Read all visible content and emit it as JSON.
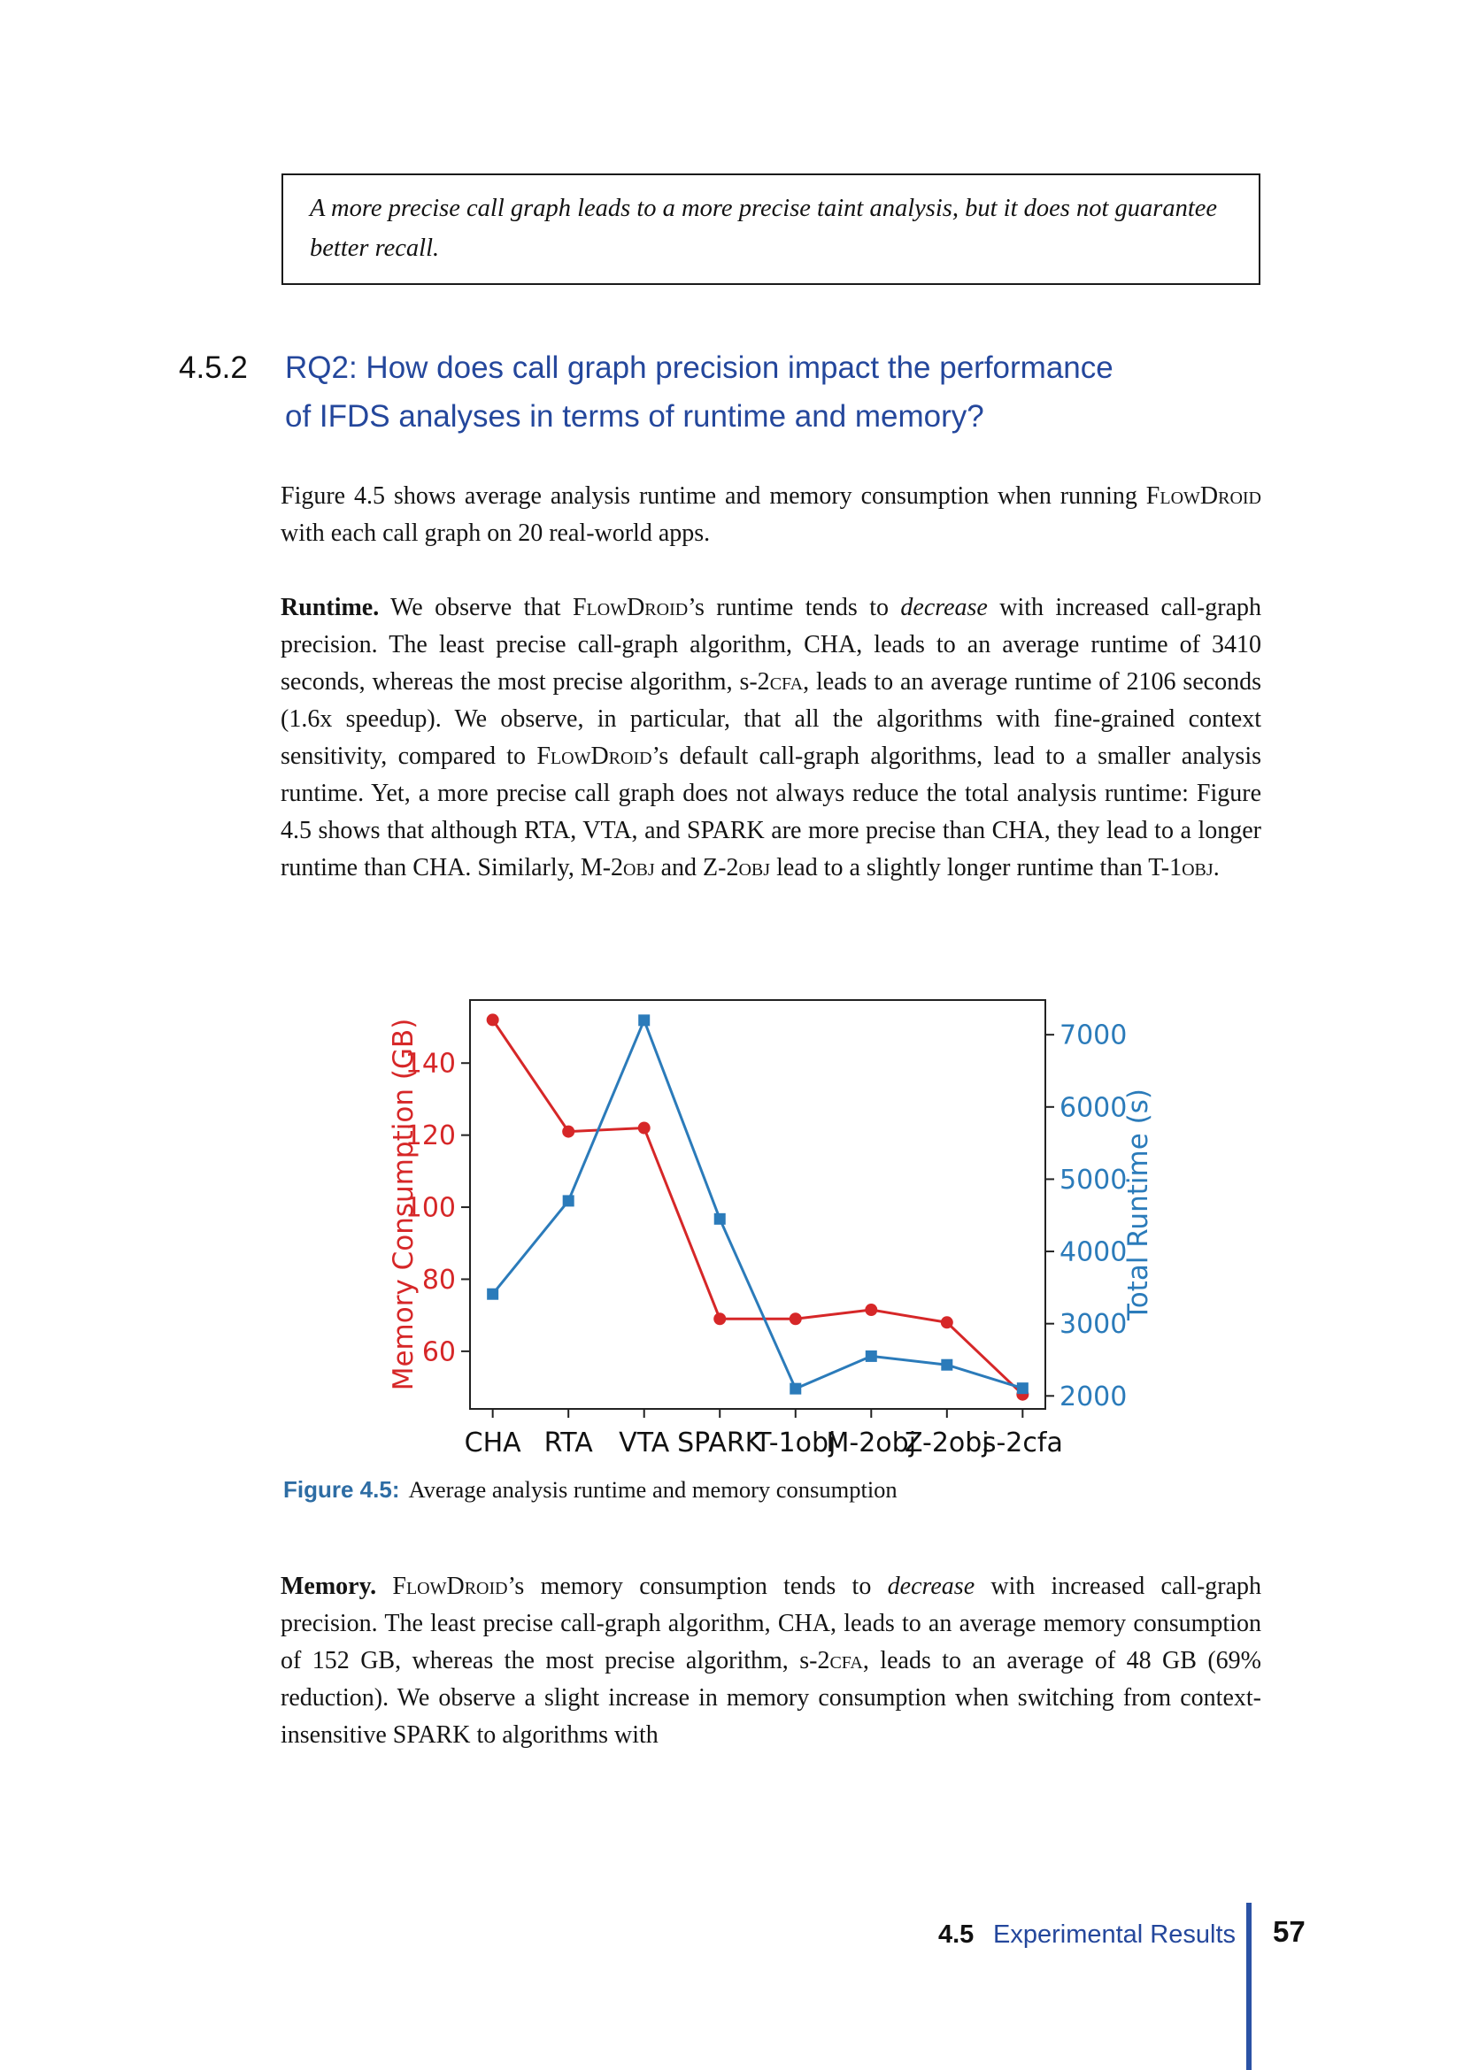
{
  "colors": {
    "heading_blue": "#24479c",
    "caption_blue": "#2e6da4",
    "rule_blue": "#2b52a5",
    "memory_red": "#d62728",
    "runtime_blue": "#2b7bba"
  },
  "quote_box": {
    "text": "A more precise call graph leads to a more precise taint analysis, but it does not guarantee better recall."
  },
  "heading": {
    "number": "4.5.2",
    "lines": [
      "RQ2: How does call graph precision impact the performance",
      "of IFDS analyses in terms of runtime and memory?"
    ]
  },
  "paragraphs": {
    "intro": [
      {
        "t": "Figure 4.5 shows average analysis runtime and memory consumption when running "
      },
      {
        "t": "FlowDroid",
        "s": "sc"
      },
      {
        "t": " with each call graph on 20 real-world apps."
      }
    ],
    "runtime": [
      {
        "t": "Runtime.",
        "s": "b"
      },
      {
        "t": " We observe that "
      },
      {
        "t": "FlowDroid",
        "s": "sc"
      },
      {
        "t": "’s runtime tends to "
      },
      {
        "t": "decrease",
        "s": "i"
      },
      {
        "t": " with increased call-graph precision. The least precise call-graph algorithm, CHA, leads to an average runtime of 3410 seconds, whereas the most precise algorithm, s-2"
      },
      {
        "t": "cfa",
        "s": "sc"
      },
      {
        "t": ", leads to an average runtime of 2106 seconds (1.6x speedup). We observe, in particular, that all the algorithms with fine-grained context sensitivity, compared to "
      },
      {
        "t": "FlowDroid",
        "s": "sc"
      },
      {
        "t": "’s default call-graph algorithms, lead to a smaller analysis runtime. Yet, a more precise call graph does not always reduce the total analysis runtime: Figure 4.5 shows that although RTA, VTA, and SPARK are more precise than CHA, they lead to a longer runtime than CHA. Similarly, M-2"
      },
      {
        "t": "obj",
        "s": "sc"
      },
      {
        "t": " and Z-2"
      },
      {
        "t": "obj",
        "s": "sc"
      },
      {
        "t": " lead to a slightly longer runtime than T-1"
      },
      {
        "t": "obj",
        "s": "sc"
      },
      {
        "t": "."
      }
    ],
    "memory": [
      {
        "t": "Memory.",
        "s": "b"
      },
      {
        "t": " "
      },
      {
        "t": "FlowDroid",
        "s": "sc"
      },
      {
        "t": "’s memory consumption tends to "
      },
      {
        "t": "decrease",
        "s": "i"
      },
      {
        "t": " with increased call-graph precision. The least precise call-graph algorithm, CHA, leads to an average memory consumption of 152 GB, whereas the most precise algorithm, s-2"
      },
      {
        "t": "cfa",
        "s": "sc"
      },
      {
        "t": ", leads to an average of 48 GB (69% reduction). We observe a slight increase in memory consumption when switching from context-insensitive SPARK to algorithms with"
      }
    ]
  },
  "figure": {
    "label": "Figure 4.5:",
    "caption": "Average analysis runtime and memory consumption"
  },
  "chart_data": {
    "type": "line",
    "title": "",
    "categories": [
      "CHA",
      "RTA",
      "VTA",
      "SPARK",
      "T-1obj",
      "M-2obj",
      "Z-2obj",
      "s-2cfa"
    ],
    "series": [
      {
        "name": "Memory Consumption (GB)",
        "axis": "left",
        "color": "#d62728",
        "marker": "circle",
        "values": [
          152,
          121,
          122,
          69,
          69,
          71.5,
          68,
          48
        ]
      },
      {
        "name": "Total Runtime (s)",
        "axis": "right",
        "color": "#2b7bba",
        "marker": "square",
        "values": [
          3410,
          4700,
          7200,
          4450,
          2100,
          2550,
          2430,
          2106
        ]
      }
    ],
    "left_axis": {
      "label": "Memory Consumption (GB)",
      "ticks": [
        60,
        80,
        100,
        120,
        140
      ],
      "range": [
        44,
        157.5
      ],
      "color": "#d62728"
    },
    "right_axis": {
      "label": "Total Runtime (s)",
      "ticks": [
        2000,
        3000,
        4000,
        5000,
        6000,
        7000
      ],
      "range": [
        1820,
        7480
      ],
      "color": "#2b7bba"
    },
    "grid": false,
    "legend": "none"
  },
  "footer": {
    "section_number": "4.5",
    "section_title": "Experimental Results",
    "page_number": "57"
  }
}
